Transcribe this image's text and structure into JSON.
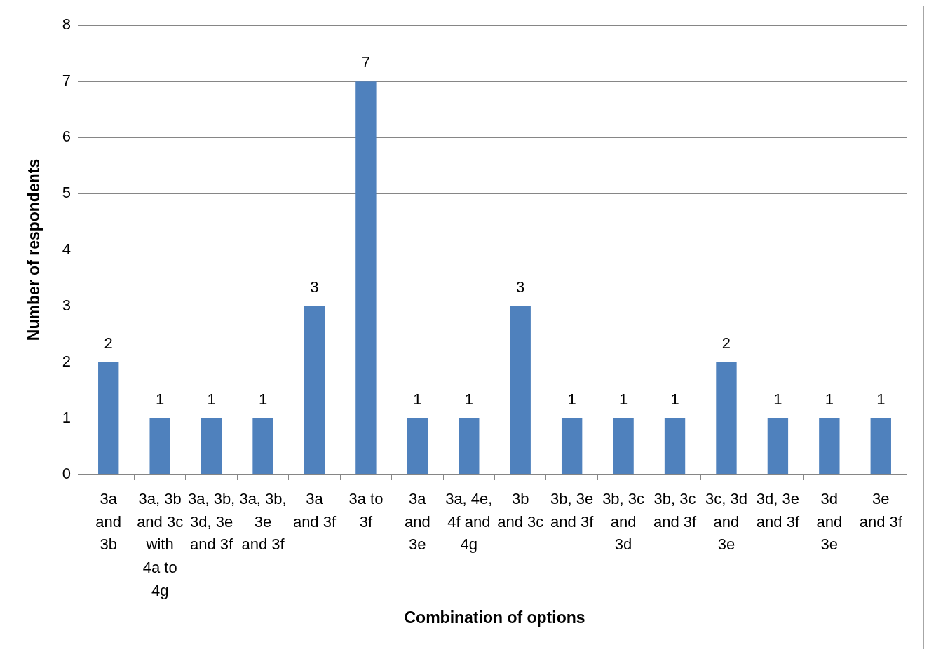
{
  "chart_data": {
    "type": "bar",
    "xlabel": "Combination of options",
    "ylabel": "Number of respondents",
    "categories": [
      "3a and 3b",
      "3a, 3b and 3c with 4a to 4g",
      "3a, 3b, 3d, 3e and 3f",
      "3a, 3b, 3e and 3f",
      "3a and 3f",
      "3a to 3f",
      "3a and 3e",
      "3a, 4e, 4f and 4g",
      "3b and 3c",
      "3b, 3e and 3f",
      "3b, 3c and 3d",
      "3b, 3c and 3f",
      "3c, 3d and 3e",
      "3d, 3e and 3f",
      "3d and 3e",
      "3e and 3f"
    ],
    "values": [
      2,
      1,
      1,
      1,
      3,
      7,
      1,
      1,
      3,
      1,
      1,
      1,
      2,
      1,
      1,
      1
    ],
    "color": "#4f81bd",
    "ylim": [
      0,
      8
    ],
    "yticks": [
      0,
      1,
      2,
      3,
      4,
      5,
      6,
      7,
      8
    ],
    "grid": "y",
    "data_labels": true,
    "legend": false
  }
}
